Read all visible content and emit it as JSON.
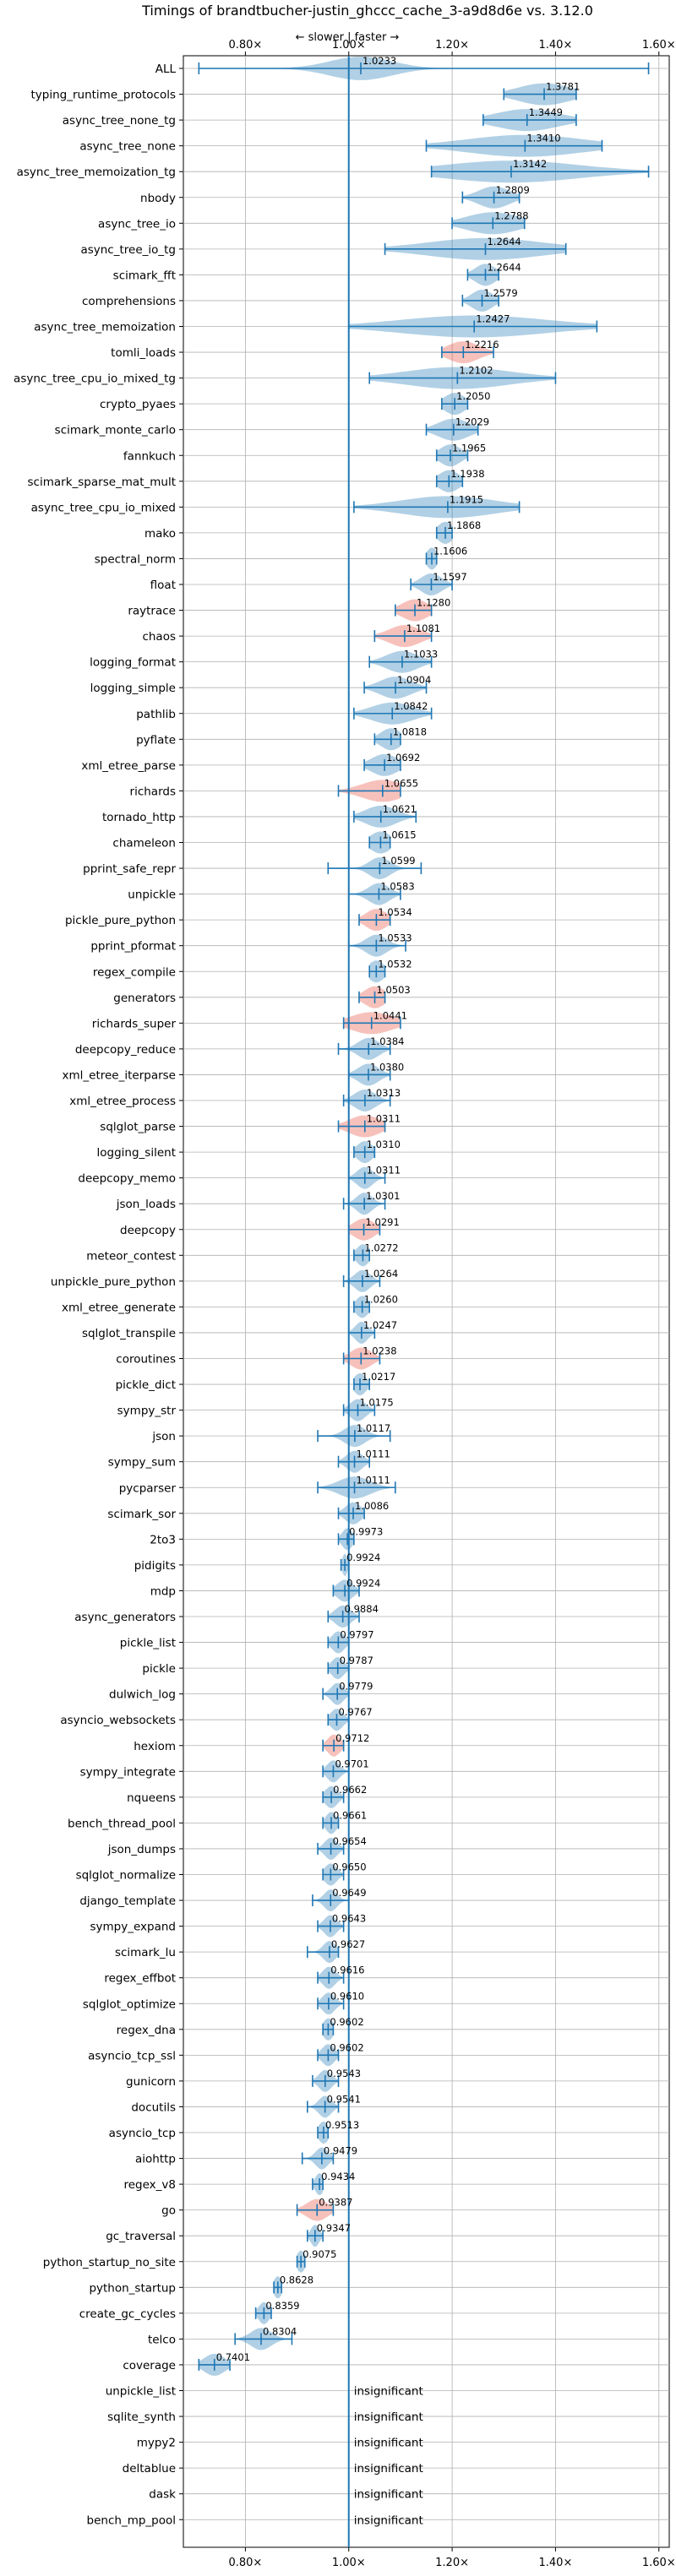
{
  "chart_data": {
    "type": "violin",
    "title": "Timings of brandtbucher-justin_ghccc_cache_3-a9d8d6e vs. 3.12.0",
    "direction_label": "← slower | faster →",
    "xlim": [
      0.68,
      1.62
    ],
    "xticks": [
      0.8,
      1.0,
      1.2,
      1.4,
      1.6
    ],
    "xtick_labels": [
      "0.80×",
      "1.00×",
      "1.20×",
      "1.40×",
      "1.60×"
    ],
    "grid": true,
    "reference_line": 1.0,
    "insignificant_label": "insignificant",
    "colors": {
      "faster": "#1f77b4",
      "slower": "#e74c3c",
      "axis": "#000000",
      "grid": "#b0b0b0"
    },
    "benchmarks": [
      {
        "name": "ALL",
        "value": 1.0233,
        "label": "1.0233",
        "min": 0.71,
        "max": 1.58,
        "spread": 0.06
      },
      {
        "name": "typing_runtime_protocols",
        "value": 1.3781,
        "label": "1.3781",
        "min": 1.3,
        "max": 1.44,
        "spread": 0.05
      },
      {
        "name": "async_tree_none_tg",
        "value": 1.3449,
        "label": "1.3449",
        "min": 1.26,
        "max": 1.44,
        "spread": 0.06
      },
      {
        "name": "async_tree_none",
        "value": 1.341,
        "label": "1.3410",
        "min": 1.15,
        "max": 1.49,
        "spread": 0.11
      },
      {
        "name": "async_tree_memoization_tg",
        "value": 1.3142,
        "label": "1.3142",
        "min": 1.16,
        "max": 1.58,
        "spread": 0.13
      },
      {
        "name": "nbody",
        "value": 1.2809,
        "label": "1.2809",
        "min": 1.22,
        "max": 1.33,
        "spread": 0.03
      },
      {
        "name": "async_tree_io",
        "value": 1.2788,
        "label": "1.2788",
        "min": 1.2,
        "max": 1.34,
        "spread": 0.05
      },
      {
        "name": "async_tree_io_tg",
        "value": 1.2644,
        "label": "1.2644",
        "min": 1.07,
        "max": 1.42,
        "spread": 0.11
      },
      {
        "name": "scimark_fft",
        "value": 1.2644,
        "label": "1.2644",
        "min": 1.23,
        "max": 1.29,
        "spread": 0.02
      },
      {
        "name": "comprehensions",
        "value": 1.2579,
        "label": "1.2579",
        "min": 1.22,
        "max": 1.29,
        "spread": 0.02
      },
      {
        "name": "async_tree_memoization",
        "value": 1.2427,
        "label": "1.2427",
        "min": 1.0,
        "max": 1.48,
        "spread": 0.14
      },
      {
        "name": "tomli_loads",
        "value": 1.2216,
        "label": "1.2216",
        "min": 1.18,
        "max": 1.28,
        "spread": 0.03,
        "slower": true
      },
      {
        "name": "async_tree_cpu_io_mixed_tg",
        "value": 1.2102,
        "label": "1.2102",
        "min": 1.04,
        "max": 1.4,
        "spread": 0.1
      },
      {
        "name": "crypto_pyaes",
        "value": 1.205,
        "label": "1.2050",
        "min": 1.18,
        "max": 1.23,
        "spread": 0.02
      },
      {
        "name": "scimark_monte_carlo",
        "value": 1.2029,
        "label": "1.2029",
        "min": 1.15,
        "max": 1.25,
        "spread": 0.03
      },
      {
        "name": "fannkuch",
        "value": 1.1965,
        "label": "1.1965",
        "min": 1.17,
        "max": 1.23,
        "spread": 0.02
      },
      {
        "name": "scimark_sparse_mat_mult",
        "value": 1.1938,
        "label": "1.1938",
        "min": 1.17,
        "max": 1.22,
        "spread": 0.02
      },
      {
        "name": "async_tree_cpu_io_mixed",
        "value": 1.1915,
        "label": "1.1915",
        "min": 1.01,
        "max": 1.33,
        "spread": 0.09
      },
      {
        "name": "mako",
        "value": 1.1868,
        "label": "1.1868",
        "min": 1.17,
        "max": 1.2,
        "spread": 0.015
      },
      {
        "name": "spectral_norm",
        "value": 1.1606,
        "label": "1.1606",
        "min": 1.15,
        "max": 1.17,
        "spread": 0.01
      },
      {
        "name": "float",
        "value": 1.1597,
        "label": "1.1597",
        "min": 1.12,
        "max": 1.2,
        "spread": 0.02
      },
      {
        "name": "raytrace",
        "value": 1.128,
        "label": "1.1280",
        "min": 1.09,
        "max": 1.16,
        "spread": 0.025,
        "slower": true
      },
      {
        "name": "chaos",
        "value": 1.1081,
        "label": "1.1081",
        "min": 1.05,
        "max": 1.16,
        "spread": 0.03,
        "slower": true
      },
      {
        "name": "logging_format",
        "value": 1.1033,
        "label": "1.1033",
        "min": 1.04,
        "max": 1.16,
        "spread": 0.03
      },
      {
        "name": "logging_simple",
        "value": 1.0904,
        "label": "1.0904",
        "min": 1.03,
        "max": 1.15,
        "spread": 0.03
      },
      {
        "name": "pathlib",
        "value": 1.0842,
        "label": "1.0842",
        "min": 1.01,
        "max": 1.16,
        "spread": 0.04
      },
      {
        "name": "pyflate",
        "value": 1.0818,
        "label": "1.0818",
        "min": 1.05,
        "max": 1.1,
        "spread": 0.02
      },
      {
        "name": "xml_etree_parse",
        "value": 1.0692,
        "label": "1.0692",
        "min": 1.03,
        "max": 1.1,
        "spread": 0.025
      },
      {
        "name": "richards",
        "value": 1.0655,
        "label": "1.0655",
        "min": 0.98,
        "max": 1.1,
        "spread": 0.04,
        "slower": true
      },
      {
        "name": "tornado_http",
        "value": 1.0621,
        "label": "1.0621",
        "min": 1.01,
        "max": 1.13,
        "spread": 0.03
      },
      {
        "name": "chameleon",
        "value": 1.0615,
        "label": "1.0615",
        "min": 1.04,
        "max": 1.08,
        "spread": 0.02
      },
      {
        "name": "pprint_safe_repr",
        "value": 1.0599,
        "label": "1.0599",
        "min": 0.96,
        "max": 1.14,
        "spread": 0.02
      },
      {
        "name": "unpickle",
        "value": 1.0583,
        "label": "1.0583",
        "min": 1.0,
        "max": 1.1,
        "spread": 0.02
      },
      {
        "name": "pickle_pure_python",
        "value": 1.0534,
        "label": "1.0534",
        "min": 1.02,
        "max": 1.08,
        "spread": 0.02,
        "slower": true
      },
      {
        "name": "pprint_pformat",
        "value": 1.0533,
        "label": "1.0533",
        "min": 1.0,
        "max": 1.11,
        "spread": 0.02
      },
      {
        "name": "regex_compile",
        "value": 1.0532,
        "label": "1.0532",
        "min": 1.04,
        "max": 1.07,
        "spread": 0.015
      },
      {
        "name": "generators",
        "value": 1.0503,
        "label": "1.0503",
        "min": 1.02,
        "max": 1.07,
        "spread": 0.02,
        "slower": true
      },
      {
        "name": "richards_super",
        "value": 1.0441,
        "label": "1.0441",
        "min": 0.99,
        "max": 1.1,
        "spread": 0.04,
        "slower": true
      },
      {
        "name": "deepcopy_reduce",
        "value": 1.0384,
        "label": "1.0384",
        "min": 0.98,
        "max": 1.08,
        "spread": 0.02
      },
      {
        "name": "xml_etree_iterparse",
        "value": 1.038,
        "label": "1.0380",
        "min": 1.0,
        "max": 1.08,
        "spread": 0.02
      },
      {
        "name": "xml_etree_process",
        "value": 1.0313,
        "label": "1.0313",
        "min": 0.99,
        "max": 1.08,
        "spread": 0.02
      },
      {
        "name": "sqlglot_parse",
        "value": 1.0311,
        "label": "1.0311",
        "min": 0.98,
        "max": 1.07,
        "spread": 0.03,
        "slower": true
      },
      {
        "name": "logging_silent",
        "value": 1.031,
        "label": "1.0310",
        "min": 1.01,
        "max": 1.05,
        "spread": 0.015
      },
      {
        "name": "deepcopy_memo",
        "value": 1.0311,
        "label": "1.0311",
        "min": 1.0,
        "max": 1.07,
        "spread": 0.015
      },
      {
        "name": "json_loads",
        "value": 1.0301,
        "label": "1.0301",
        "min": 0.99,
        "max": 1.07,
        "spread": 0.015
      },
      {
        "name": "deepcopy",
        "value": 1.0291,
        "label": "1.0291",
        "min": 1.0,
        "max": 1.06,
        "spread": 0.02,
        "slower": true
      },
      {
        "name": "meteor_contest",
        "value": 1.0272,
        "label": "1.0272",
        "min": 1.01,
        "max": 1.04,
        "spread": 0.012
      },
      {
        "name": "unpickle_pure_python",
        "value": 1.0264,
        "label": "1.0264",
        "min": 0.99,
        "max": 1.06,
        "spread": 0.015
      },
      {
        "name": "xml_etree_generate",
        "value": 1.026,
        "label": "1.0260",
        "min": 1.01,
        "max": 1.04,
        "spread": 0.012
      },
      {
        "name": "sqlglot_transpile",
        "value": 1.0247,
        "label": "1.0247",
        "min": 1.0,
        "max": 1.05,
        "spread": 0.012
      },
      {
        "name": "coroutines",
        "value": 1.0238,
        "label": "1.0238",
        "min": 0.99,
        "max": 1.06,
        "spread": 0.02,
        "slower": true
      },
      {
        "name": "pickle_dict",
        "value": 1.0217,
        "label": "1.0217",
        "min": 1.01,
        "max": 1.04,
        "spread": 0.012
      },
      {
        "name": "sympy_str",
        "value": 1.0175,
        "label": "1.0175",
        "min": 0.99,
        "max": 1.05,
        "spread": 0.015
      },
      {
        "name": "json",
        "value": 1.0117,
        "label": "1.0117",
        "min": 0.94,
        "max": 1.08,
        "spread": 0.02
      },
      {
        "name": "sympy_sum",
        "value": 1.0111,
        "label": "1.0111",
        "min": 0.98,
        "max": 1.04,
        "spread": 0.015
      },
      {
        "name": "pycparser",
        "value": 1.0111,
        "label": "1.0111",
        "min": 0.94,
        "max": 1.09,
        "spread": 0.03
      },
      {
        "name": "scimark_sor",
        "value": 1.0086,
        "label": "1.0086",
        "min": 0.98,
        "max": 1.03,
        "spread": 0.015
      },
      {
        "name": "2to3",
        "value": 0.9973,
        "label": "0.9973",
        "min": 0.98,
        "max": 1.01,
        "spread": 0.01
      },
      {
        "name": "pidigits",
        "value": 0.9924,
        "label": "0.9924",
        "min": 0.985,
        "max": 1.0,
        "spread": 0.005
      },
      {
        "name": "mdp",
        "value": 0.9924,
        "label": "0.9924",
        "min": 0.97,
        "max": 1.02,
        "spread": 0.015
      },
      {
        "name": "async_generators",
        "value": 0.9884,
        "label": "0.9884",
        "min": 0.96,
        "max": 1.02,
        "spread": 0.015
      },
      {
        "name": "pickle_list",
        "value": 0.9797,
        "label": "0.9797",
        "min": 0.96,
        "max": 1.0,
        "spread": 0.012
      },
      {
        "name": "pickle",
        "value": 0.9787,
        "label": "0.9787",
        "min": 0.96,
        "max": 1.0,
        "spread": 0.012
      },
      {
        "name": "dulwich_log",
        "value": 0.9779,
        "label": "0.9779",
        "min": 0.95,
        "max": 1.0,
        "spread": 0.012
      },
      {
        "name": "asyncio_websockets",
        "value": 0.9767,
        "label": "0.9767",
        "min": 0.96,
        "max": 1.0,
        "spread": 0.012
      },
      {
        "name": "hexiom",
        "value": 0.9712,
        "label": "0.9712",
        "min": 0.95,
        "max": 0.99,
        "spread": 0.012,
        "slower": true
      },
      {
        "name": "sympy_integrate",
        "value": 0.9701,
        "label": "0.9701",
        "min": 0.95,
        "max": 1.0,
        "spread": 0.012
      },
      {
        "name": "nqueens",
        "value": 0.9662,
        "label": "0.9662",
        "min": 0.95,
        "max": 0.99,
        "spread": 0.012
      },
      {
        "name": "bench_thread_pool",
        "value": 0.9661,
        "label": "0.9661",
        "min": 0.95,
        "max": 0.98,
        "spread": 0.01
      },
      {
        "name": "json_dumps",
        "value": 0.9654,
        "label": "0.9654",
        "min": 0.94,
        "max": 0.99,
        "spread": 0.012
      },
      {
        "name": "sqlglot_normalize",
        "value": 0.965,
        "label": "0.9650",
        "min": 0.95,
        "max": 0.99,
        "spread": 0.012
      },
      {
        "name": "django_template",
        "value": 0.9649,
        "label": "0.9649",
        "min": 0.93,
        "max": 1.0,
        "spread": 0.012
      },
      {
        "name": "sympy_expand",
        "value": 0.9643,
        "label": "0.9643",
        "min": 0.94,
        "max": 0.99,
        "spread": 0.012
      },
      {
        "name": "scimark_lu",
        "value": 0.9627,
        "label": "0.9627",
        "min": 0.92,
        "max": 0.98,
        "spread": 0.012
      },
      {
        "name": "regex_effbot",
        "value": 0.9616,
        "label": "0.9616",
        "min": 0.94,
        "max": 0.99,
        "spread": 0.012
      },
      {
        "name": "sqlglot_optimize",
        "value": 0.961,
        "label": "0.9610",
        "min": 0.94,
        "max": 0.99,
        "spread": 0.012
      },
      {
        "name": "regex_dna",
        "value": 0.9602,
        "label": "0.9602",
        "min": 0.95,
        "max": 0.97,
        "spread": 0.01
      },
      {
        "name": "asyncio_tcp_ssl",
        "value": 0.9602,
        "label": "0.9602",
        "min": 0.94,
        "max": 0.98,
        "spread": 0.012
      },
      {
        "name": "gunicorn",
        "value": 0.9543,
        "label": "0.9543",
        "min": 0.93,
        "max": 0.98,
        "spread": 0.012
      },
      {
        "name": "docutils",
        "value": 0.9541,
        "label": "0.9541",
        "min": 0.92,
        "max": 0.98,
        "spread": 0.012
      },
      {
        "name": "asyncio_tcp",
        "value": 0.9513,
        "label": "0.9513",
        "min": 0.94,
        "max": 0.96,
        "spread": 0.01
      },
      {
        "name": "aiohttp",
        "value": 0.9479,
        "label": "0.9479",
        "min": 0.91,
        "max": 0.97,
        "spread": 0.012
      },
      {
        "name": "regex_v8",
        "value": 0.9434,
        "label": "0.9434",
        "min": 0.93,
        "max": 0.95,
        "spread": 0.008
      },
      {
        "name": "go",
        "value": 0.9387,
        "label": "0.9387",
        "min": 0.9,
        "max": 0.97,
        "spread": 0.02,
        "slower": true
      },
      {
        "name": "gc_traversal",
        "value": 0.9347,
        "label": "0.9347",
        "min": 0.92,
        "max": 0.95,
        "spread": 0.008
      },
      {
        "name": "python_startup_no_site",
        "value": 0.9075,
        "label": "0.9075",
        "min": 0.9,
        "max": 0.915,
        "spread": 0.008
      },
      {
        "name": "python_startup",
        "value": 0.8628,
        "label": "0.8628",
        "min": 0.855,
        "max": 0.87,
        "spread": 0.008
      },
      {
        "name": "create_gc_cycles",
        "value": 0.8359,
        "label": "0.8359",
        "min": 0.82,
        "max": 0.85,
        "spread": 0.01
      },
      {
        "name": "telco",
        "value": 0.8304,
        "label": "0.8304",
        "min": 0.78,
        "max": 0.89,
        "spread": 0.02
      },
      {
        "name": "coverage",
        "value": 0.7401,
        "label": "0.7401",
        "min": 0.71,
        "max": 0.77,
        "spread": 0.02
      },
      {
        "name": "unpickle_list",
        "insignificant": true
      },
      {
        "name": "sqlite_synth",
        "insignificant": true
      },
      {
        "name": "mypy2",
        "insignificant": true
      },
      {
        "name": "deltablue",
        "insignificant": true
      },
      {
        "name": "dask",
        "insignificant": true
      },
      {
        "name": "bench_mp_pool",
        "insignificant": true
      }
    ]
  }
}
